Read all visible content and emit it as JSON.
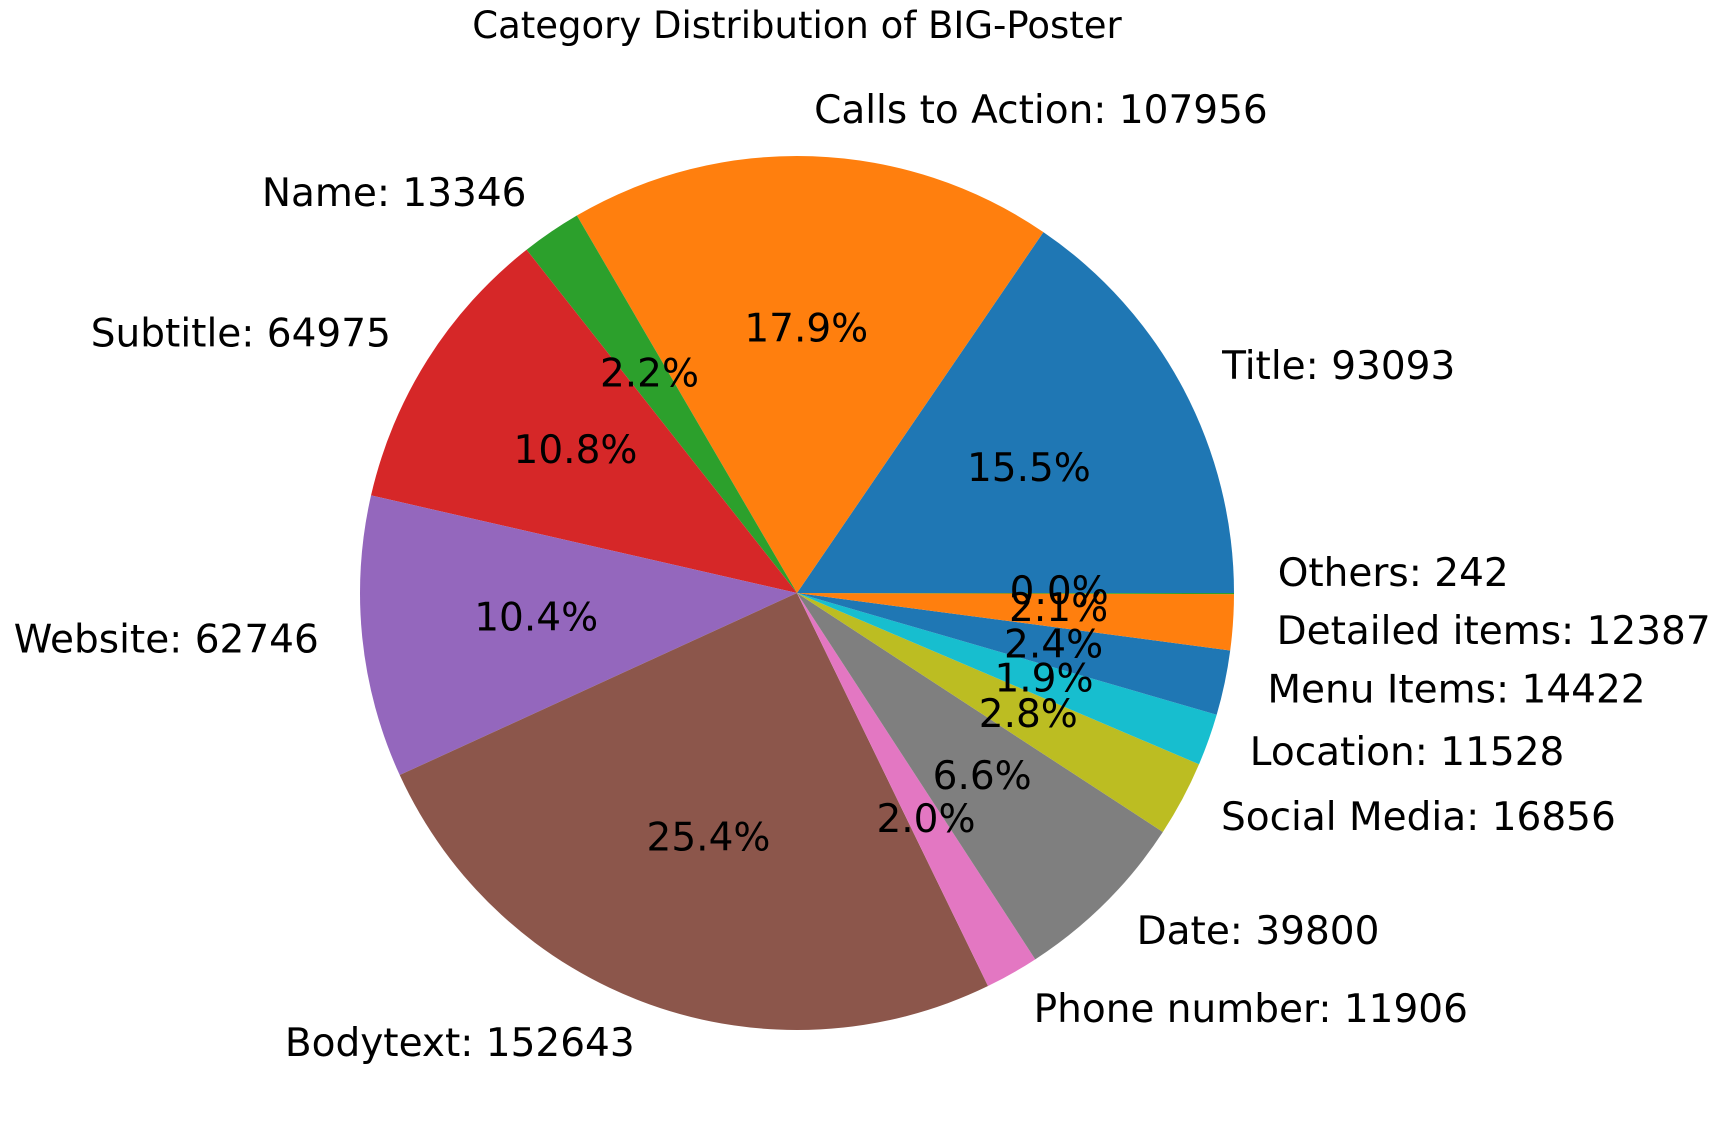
{
  "chart_data": {
    "type": "pie",
    "title": "Category Distribution of BIG-Poster",
    "start_angle_deg": 0,
    "direction": "counterclockwise",
    "slices": [
      {
        "label": "Title",
        "value": 93093,
        "percent": "15.5%",
        "outer_text": "Title: 93093",
        "color": "#1f77b4"
      },
      {
        "label": "Calls to Action",
        "value": 107956,
        "percent": "17.9%",
        "outer_text": "Calls to Action: 107956",
        "color": "#ff7f0e"
      },
      {
        "label": "Name",
        "value": 13346,
        "percent": "2.2%",
        "outer_text": "Name: 13346",
        "color": "#2ca02c"
      },
      {
        "label": "Subtitle",
        "value": 64975,
        "percent": "10.8%",
        "outer_text": "Subtitle: 64975",
        "color": "#d62728"
      },
      {
        "label": "Website",
        "value": 62746,
        "percent": "10.4%",
        "outer_text": "Website: 62746",
        "color": "#9467bd"
      },
      {
        "label": "Bodytext",
        "value": 152643,
        "percent": "25.4%",
        "outer_text": "Bodytext: 152643",
        "color": "#8c564b"
      },
      {
        "label": "Phone number",
        "value": 11906,
        "percent": "2.0%",
        "outer_text": "Phone number: 11906",
        "color": "#e377c2"
      },
      {
        "label": "Date",
        "value": 39800,
        "percent": "6.6%",
        "outer_text": "Date: 39800",
        "color": "#7f7f7f"
      },
      {
        "label": "Social Media",
        "value": 16856,
        "percent": "2.8%",
        "outer_text": "Social Media: 16856",
        "color": "#bcbd22"
      },
      {
        "label": "Location",
        "value": 11528,
        "percent": "1.9%",
        "outer_text": "Location: 11528",
        "color": "#17becf"
      },
      {
        "label": "Menu Items",
        "value": 14422,
        "percent": "2.4%",
        "outer_text": "Menu Items: 14422",
        "color": "#1f77b4"
      },
      {
        "label": "Detailed items",
        "value": 12387,
        "percent": "2.1%",
        "outer_text": "Detailed items: 12387",
        "color": "#ff7f0e"
      },
      {
        "label": "Others",
        "value": 242,
        "percent": "0.0%",
        "outer_text": "Others: 242",
        "color": "#2ca02c"
      }
    ]
  }
}
